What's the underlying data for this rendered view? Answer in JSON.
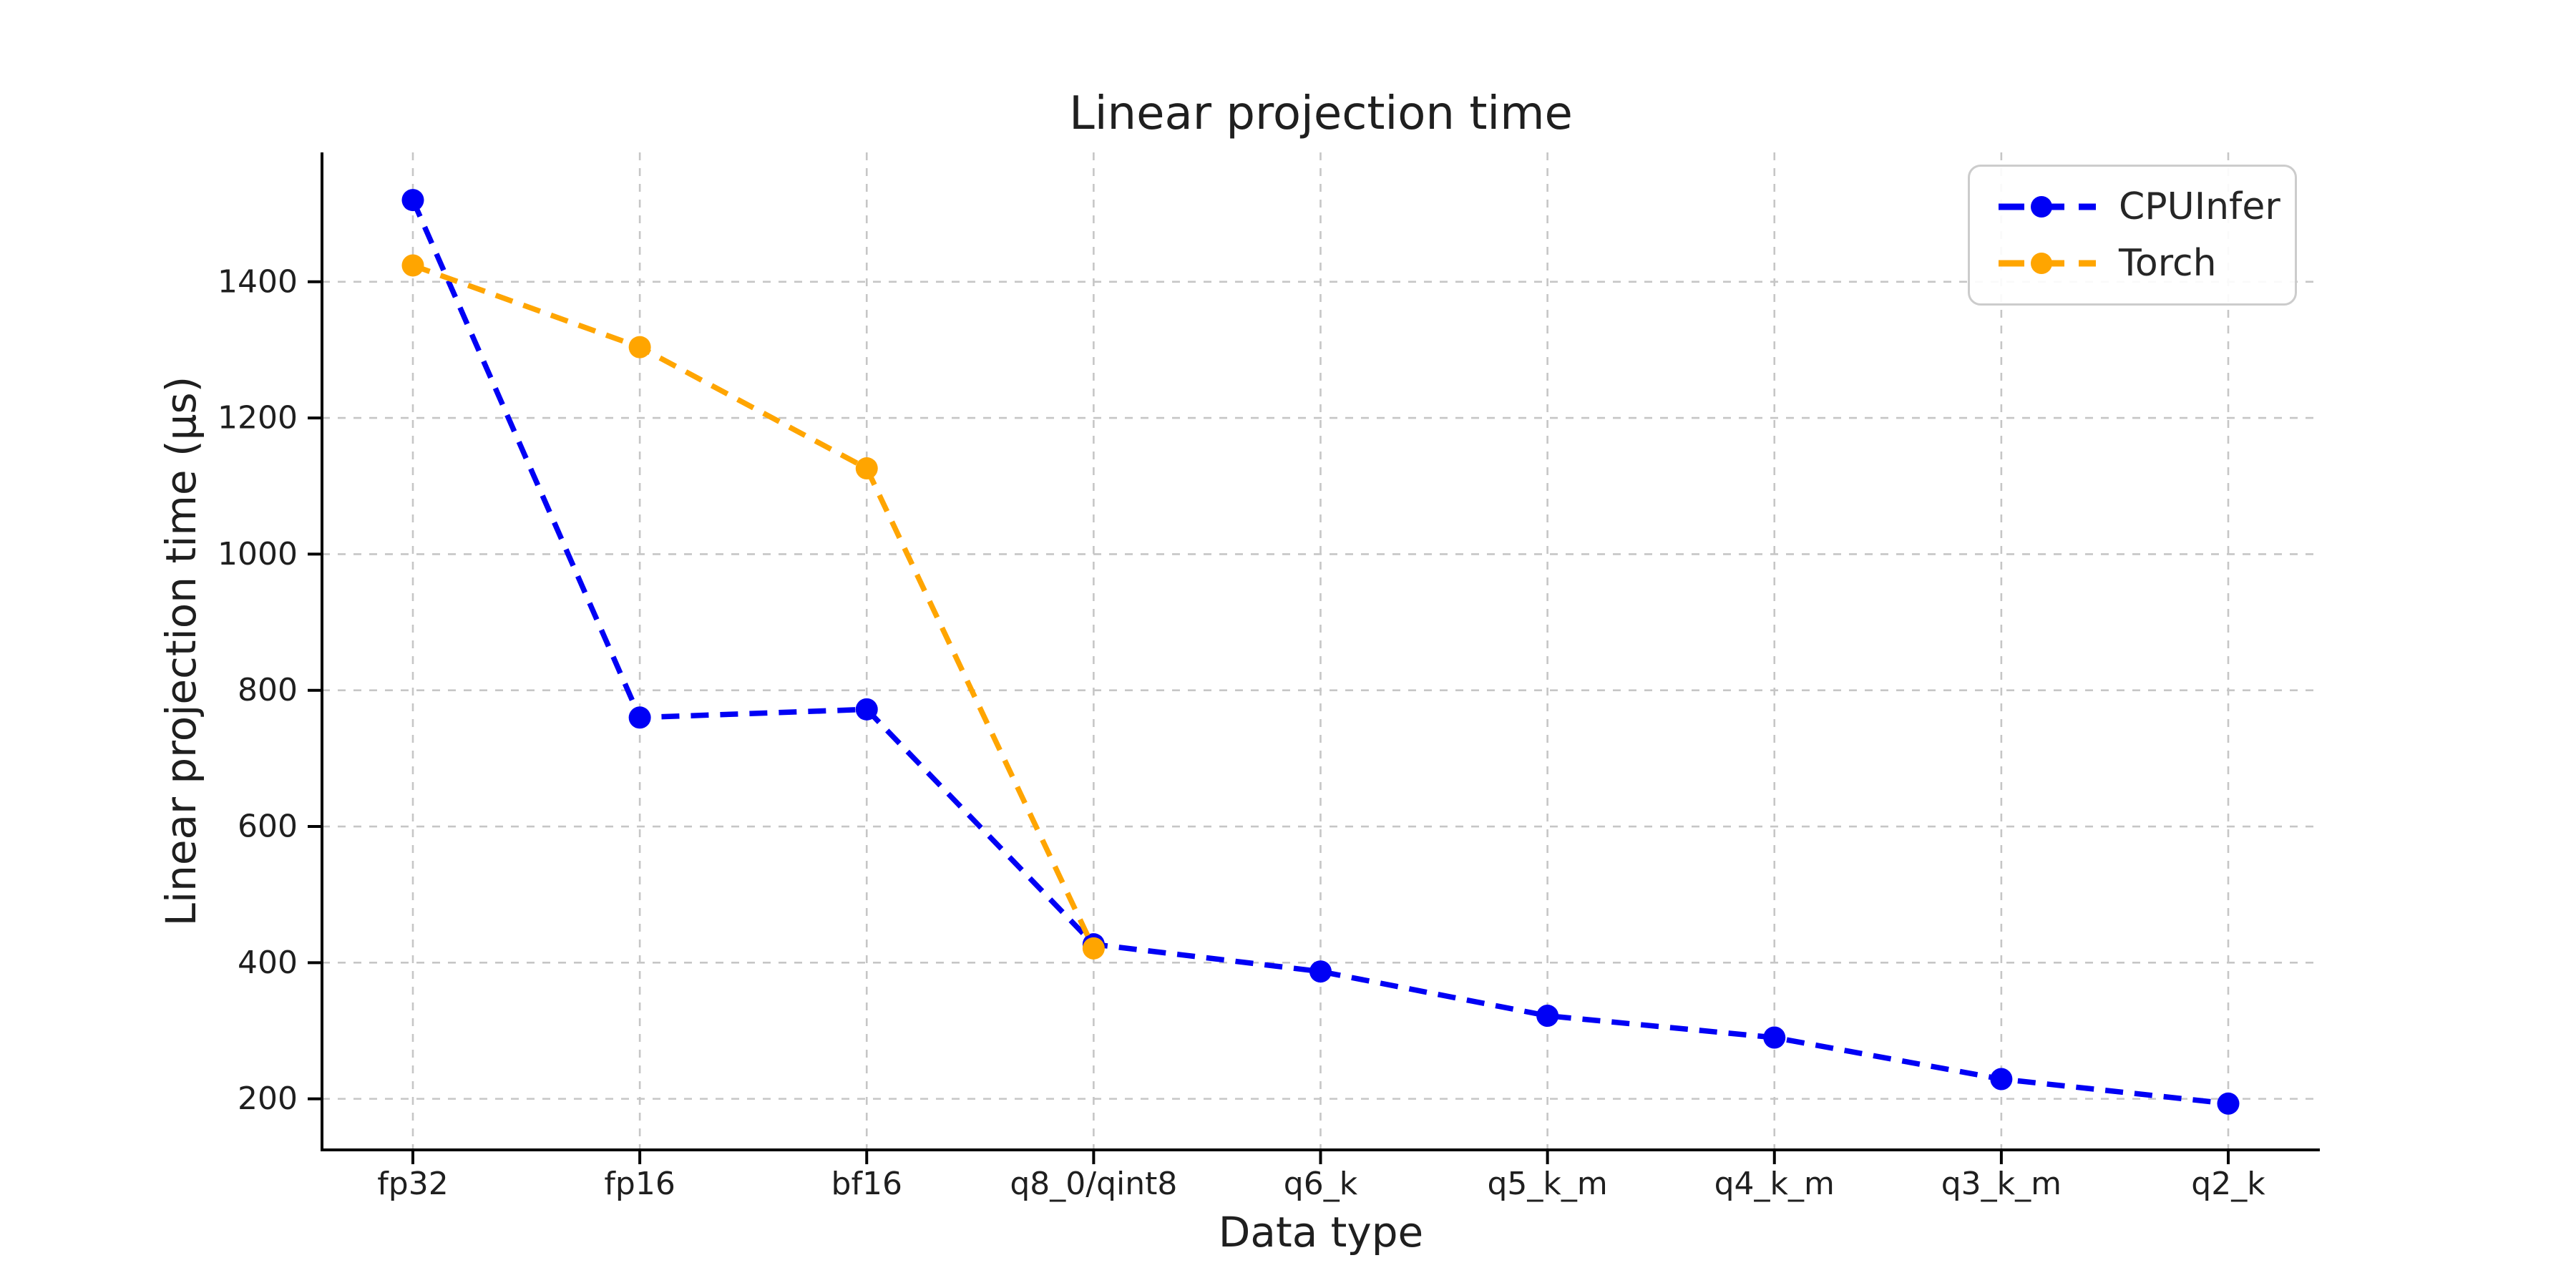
{
  "chart_data": {
    "type": "line",
    "title": "Linear projection time",
    "xlabel": "Data type",
    "ylabel": "Linear projection time (μs)",
    "categories": [
      "fp32",
      "fp16",
      "bf16",
      "q8_0/qint8",
      "q6_k",
      "q5_k_m",
      "q4_k_m",
      "q3_k_m",
      "q2_k"
    ],
    "series": [
      {
        "name": "CPUInfer",
        "color": "#0000f5",
        "values": [
          1520,
          760,
          772,
          427,
          387,
          322,
          290,
          229,
          193
        ]
      },
      {
        "name": "Torch",
        "color": "#ffa500",
        "values": [
          1424,
          1304,
          1126,
          421
        ]
      }
    ],
    "yticks": [
      200,
      400,
      600,
      800,
      1000,
      1200,
      1400
    ],
    "ylim": [
      125,
      1590
    ],
    "grid": true,
    "grid_style": "dashed",
    "line_style": "dashed",
    "marker": "circle",
    "legend_position": "upper right",
    "spines": [
      "left",
      "bottom"
    ],
    "background": "#ffffff"
  }
}
